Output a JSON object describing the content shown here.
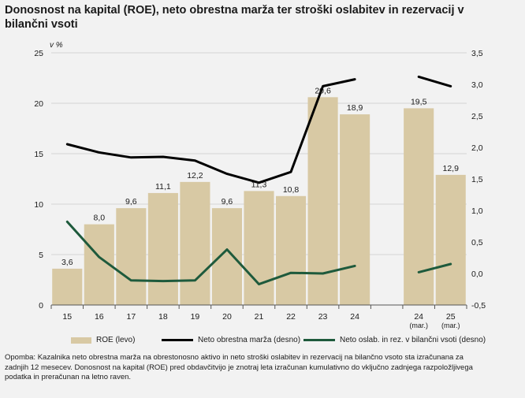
{
  "title": "Donosnost na kapital (ROE), neto obrestna marža ter stroški oslabitev in rezervacij v bilančni vsoti",
  "chart_data": {
    "type": "bar+line",
    "unit": "v %",
    "categories": [
      {
        "label": "15",
        "sub": ""
      },
      {
        "label": "16",
        "sub": ""
      },
      {
        "label": "17",
        "sub": ""
      },
      {
        "label": "18",
        "sub": ""
      },
      {
        "label": "19",
        "sub": ""
      },
      {
        "label": "20",
        "sub": ""
      },
      {
        "label": "21",
        "sub": ""
      },
      {
        "label": "22",
        "sub": ""
      },
      {
        "label": "23",
        "sub": ""
      },
      {
        "label": "24",
        "sub": ""
      },
      {
        "label": "",
        "sub": ""
      },
      {
        "label": "24",
        "sub": "(mar.)"
      },
      {
        "label": "25",
        "sub": "(mar.)"
      }
    ],
    "left_axis": {
      "min": 0,
      "max": 25,
      "ticks": [
        "0",
        "5",
        "10",
        "15",
        "20",
        "25"
      ]
    },
    "right_axis": {
      "min": -0.5,
      "max": 3.5,
      "ticks": [
        "-0,5",
        "0,0",
        "0,5",
        "1,0",
        "1,5",
        "2,0",
        "2,5",
        "3,0",
        "3,5"
      ]
    },
    "series": [
      {
        "name": "ROE (levo)",
        "type": "bar",
        "axis": "left",
        "color": "#d8c9a4",
        "values": [
          3.6,
          8.0,
          9.6,
          11.1,
          12.2,
          9.6,
          11.3,
          10.8,
          20.6,
          18.9,
          null,
          19.5,
          12.9
        ],
        "labels": [
          "3,6",
          "8,0",
          "9,6",
          "11,1",
          "12,2",
          "9,6",
          "11,3",
          "10,8",
          "20,6",
          "18,9",
          "",
          "19,5",
          "12,9"
        ]
      },
      {
        "name": "Neto obrestna marža (desno)",
        "type": "line",
        "axis": "right",
        "color": "#000000",
        "values": [
          2.05,
          1.92,
          1.84,
          1.85,
          1.79,
          1.58,
          1.44,
          1.61,
          2.97,
          3.08,
          null,
          3.12,
          2.97
        ]
      },
      {
        "name": "Neto oslab. in rez. v bilančni vsoti (desno)",
        "type": "line",
        "axis": "right",
        "color": "#1e5a3c",
        "values": [
          0.82,
          0.26,
          -0.11,
          -0.12,
          -0.11,
          0.38,
          -0.17,
          0.01,
          0.0,
          0.12,
          null,
          0.02,
          0.15
        ]
      }
    ]
  },
  "legend": [
    "ROE (levo)",
    "Neto obrestna marža (desno)",
    "Neto oslab. in rez. v bilančni vsoti (desno)"
  ],
  "note": "Opomba: Kazalnika neto obrestna marža na obrestonosno aktivo in neto stroški oslabitev in rezervacij na bilančno vsoto sta izračunana za zadnjih 12 mesecev. Donosnost na kapital (ROE) pred obdavčitvijo je znotraj leta izračunan kumulativno do vključno zadnjega razpoložljivega podatka in preračunan na letno raven."
}
